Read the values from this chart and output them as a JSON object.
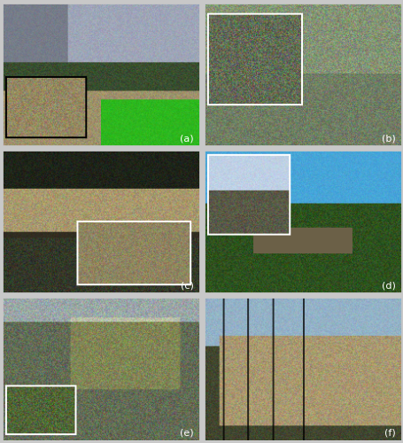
{
  "labels": [
    "(a)",
    "(b)",
    "(c)",
    "(d)",
    "(e)",
    "(f)"
  ],
  "border_color": "#c8c8c8",
  "label_color": "#ffffff",
  "label_fontsize": 8,
  "figsize": [
    4.56,
    5.0
  ],
  "dpi": 100,
  "seed": 42
}
